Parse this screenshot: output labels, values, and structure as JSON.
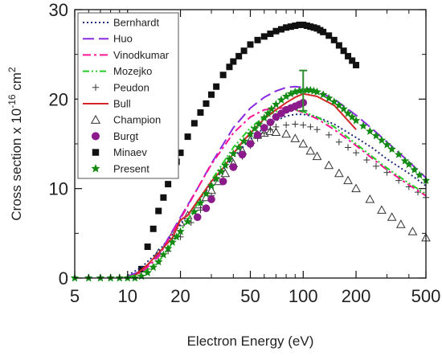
{
  "chart_data": {
    "type": "scatter",
    "xlabel": "Electron Energy (eV)",
    "ylabel": "Cross section  x 10⁻¹⁶ cm²",
    "xscale": "log",
    "xlim": [
      5,
      500
    ],
    "ylim": [
      0,
      30
    ],
    "x_ticks": [
      5,
      10,
      20,
      50,
      100,
      200,
      500
    ],
    "x_tick_labels": [
      "5",
      "10",
      "20",
      "50",
      "100",
      "200",
      "500"
    ],
    "y_ticks": [
      0,
      10,
      20,
      30
    ],
    "y_tick_labels": [
      "0",
      "10",
      "20",
      "30"
    ],
    "grid": false,
    "legend_position": "top-left",
    "series": [
      {
        "name": "Bernhardt",
        "style": "dotted-line",
        "color": "#1f2a7a",
        "x": [
          10,
          12,
          15,
          20,
          25,
          30,
          40,
          50,
          60,
          70,
          80,
          90,
          100,
          120,
          150,
          200,
          250,
          300,
          400,
          500
        ],
        "y": [
          0.3,
          1.2,
          3.0,
          6.0,
          8.5,
          10.5,
          13.5,
          15.5,
          16.8,
          17.6,
          18.1,
          18.3,
          18.3,
          18.0,
          17.2,
          15.7,
          14.5,
          13.3,
          11.7,
          10.3
        ]
      },
      {
        "name": "Huo",
        "style": "long-dash-line",
        "color": "#8a2be2",
        "x": [
          10,
          12,
          15,
          20,
          25,
          30,
          40,
          50,
          60,
          70,
          80,
          90,
          100,
          120,
          150,
          200,
          250,
          300,
          400,
          500
        ],
        "y": [
          0.2,
          0.8,
          2.6,
          6.8,
          10.0,
          12.8,
          16.8,
          19.0,
          20.2,
          20.9,
          21.3,
          21.4,
          21.3,
          20.9,
          20.0,
          18.2,
          16.6,
          15.2,
          13.0,
          11.2
        ]
      },
      {
        "name": "Vinodkumar",
        "style": "dash-dot-line",
        "color": "#ff1493",
        "x": [
          10,
          12,
          15,
          20,
          25,
          30,
          40,
          50,
          60,
          70,
          80,
          90,
          100,
          120,
          150,
          200,
          250,
          300,
          400,
          500
        ],
        "y": [
          0.1,
          0.6,
          2.4,
          6.6,
          10.0,
          12.7,
          16.2,
          18.0,
          18.8,
          19.0,
          19.0,
          18.8,
          18.5,
          17.8,
          16.6,
          14.8,
          13.3,
          12.1,
          10.4,
          9.2
        ]
      },
      {
        "name": "Mozejko",
        "style": "dash-dot-dot-line",
        "color": "#22cc22",
        "x": [
          10,
          12,
          15,
          20,
          25,
          30,
          40,
          50,
          60,
          70,
          80,
          90,
          100,
          120,
          150,
          200,
          250,
          300,
          400,
          500
        ],
        "y": [
          0.1,
          0.5,
          1.8,
          5.2,
          8.3,
          10.9,
          14.6,
          16.8,
          18.0,
          18.6,
          18.8,
          18.8,
          18.6,
          18.0,
          16.9,
          15.0,
          13.5,
          12.3,
          10.6,
          9.4
        ]
      },
      {
        "name": "Peudon",
        "style": "plus-marker",
        "color": "#333333",
        "x": [
          13,
          15,
          17,
          20,
          23,
          26,
          30,
          35,
          40,
          45,
          50,
          55,
          60,
          65,
          70,
          80,
          90,
          100,
          110,
          120,
          140,
          160,
          180,
          200,
          230,
          260,
          300,
          350,
          400,
          450,
          500
        ],
        "y": [
          1.0,
          1.9,
          3.0,
          4.6,
          6.2,
          7.6,
          9.2,
          11.0,
          12.4,
          13.6,
          14.8,
          15.6,
          16.2,
          16.6,
          16.9,
          17.1,
          17.2,
          17.1,
          16.9,
          16.6,
          16.0,
          15.2,
          14.6,
          14.0,
          13.2,
          12.5,
          11.8,
          10.9,
          10.2,
          9.6,
          9.0
        ]
      },
      {
        "name": "Bull",
        "style": "solid-line",
        "color": "#d62728",
        "x": [
          11,
          13,
          15,
          18,
          20,
          22,
          25,
          30,
          35,
          40,
          45,
          50,
          60,
          70,
          80,
          90,
          100,
          120,
          150,
          200
        ],
        "y": [
          0.3,
          1.5,
          2.8,
          4.5,
          6.5,
          7.0,
          8.6,
          10.8,
          12.3,
          13.9,
          15.2,
          16.2,
          17.8,
          18.8,
          19.6,
          20.2,
          20.6,
          20.3,
          19.3,
          16.6
        ]
      },
      {
        "name": "Champion",
        "style": "open-triangle-marker",
        "color": "#333333",
        "x": [
          15,
          18,
          20,
          22,
          25,
          28,
          30,
          33,
          36,
          40,
          45,
          50,
          55,
          60,
          65,
          70,
          80,
          90,
          100,
          110,
          120,
          140,
          160,
          180,
          200,
          240,
          280,
          320,
          360,
          420,
          500
        ],
        "y": [
          2.8,
          4.8,
          6.2,
          7.0,
          8.2,
          9.0,
          9.8,
          10.8,
          11.7,
          12.8,
          14.2,
          15.4,
          16.0,
          16.2,
          16.4,
          16.3,
          16.1,
          15.6,
          15.0,
          14.2,
          13.6,
          12.6,
          11.7,
          10.9,
          10.0,
          8.8,
          7.6,
          6.8,
          6.0,
          5.2,
          4.5
        ]
      },
      {
        "name": "Burgt",
        "style": "filled-circle-marker",
        "color": "#8b1a8b",
        "x": [
          25,
          28,
          30,
          35,
          40,
          45,
          50,
          55,
          60,
          65,
          70,
          75,
          80,
          85,
          90,
          95,
          100
        ],
        "y": [
          6.8,
          7.8,
          8.8,
          10.8,
          12.4,
          13.8,
          15.0,
          16.0,
          16.8,
          17.4,
          18.0,
          18.4,
          18.8,
          19.0,
          19.2,
          19.4,
          19.6
        ]
      },
      {
        "name": "Minaev",
        "style": "filled-square-marker",
        "color": "#111111",
        "x": [
          12,
          13,
          14,
          15,
          16,
          17,
          18,
          19,
          20,
          22,
          24,
          26,
          28,
          30,
          32,
          35,
          38,
          40,
          43,
          46,
          50,
          55,
          60,
          65,
          70,
          75,
          80,
          85,
          90,
          95,
          100,
          105,
          110,
          115,
          120,
          125,
          130,
          140,
          150,
          160,
          170,
          180,
          190,
          200
        ],
        "y": [
          1.0,
          3.5,
          5.5,
          7.5,
          9.0,
          10.5,
          12.0,
          13.0,
          14.0,
          15.8,
          17.3,
          18.5,
          19.5,
          20.5,
          21.4,
          22.7,
          23.6,
          24.2,
          24.8,
          25.4,
          26.1,
          26.6,
          27.0,
          27.3,
          27.6,
          27.8,
          28.0,
          28.1,
          28.2,
          28.3,
          28.3,
          28.2,
          28.1,
          28.0,
          27.9,
          27.7,
          27.5,
          27.1,
          26.6,
          26.0,
          25.4,
          24.8,
          24.3,
          23.8
        ]
      },
      {
        "name": "Present",
        "style": "filled-star-marker",
        "color": "#138a13",
        "x": [
          5,
          6,
          7,
          8,
          9,
          10,
          11,
          12,
          13,
          14,
          15,
          16,
          17,
          18,
          19,
          20,
          22,
          24,
          26,
          28,
          30,
          32,
          34,
          36,
          38,
          40,
          43,
          46,
          50,
          53,
          56,
          60,
          63,
          66,
          70,
          75,
          80,
          85,
          90,
          95,
          100,
          105,
          110,
          115,
          120,
          130,
          140,
          150,
          160,
          170,
          180,
          190,
          200,
          220,
          240,
          260,
          280,
          300,
          320,
          350,
          380,
          400,
          430,
          460,
          500
        ],
        "y": [
          0,
          0,
          0,
          0,
          0,
          0,
          0,
          0.2,
          0.6,
          1.2,
          1.8,
          2.6,
          3.3,
          4.0,
          4.6,
          5.2,
          6.3,
          7.4,
          8.4,
          9.4,
          10.3,
          11.1,
          11.9,
          12.6,
          13.3,
          13.9,
          14.6,
          15.3,
          16.1,
          16.7,
          17.2,
          17.9,
          18.4,
          18.9,
          19.4,
          19.9,
          20.3,
          20.6,
          20.8,
          20.9,
          21.0,
          21.0,
          21.0,
          20.9,
          20.8,
          20.5,
          20.1,
          19.7,
          19.3,
          18.9,
          18.4,
          18.0,
          17.6,
          17.0,
          16.4,
          15.9,
          15.4,
          14.9,
          14.4,
          13.8,
          13.1,
          12.7,
          12.1,
          11.5,
          10.9
        ]
      }
    ],
    "error_bar": {
      "x": 100,
      "y": 20.9,
      "low": 18.7,
      "high": 23.2,
      "color": "#2e8b2e"
    }
  }
}
